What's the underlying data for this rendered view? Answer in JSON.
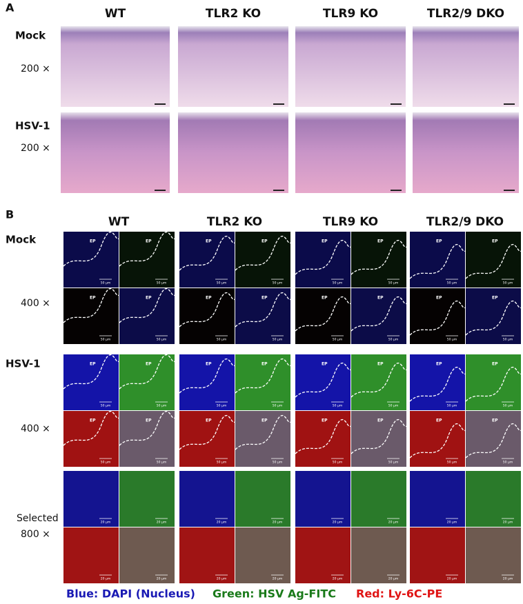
{
  "panel_a": {
    "label": "A",
    "columns": [
      "WT",
      "TLR2  KO",
      "TLR9  KO",
      "TLR2/9 DKO"
    ],
    "rows": [
      {
        "label": "Mock",
        "magnification": "200 ×"
      },
      {
        "label": "HSV-1",
        "magnification": "200 ×"
      }
    ]
  },
  "panel_b": {
    "label": "B",
    "columns": [
      "WT",
      "TLR2  KO",
      "TLR9  KO",
      "TLR2/9 DKO"
    ],
    "rows": [
      {
        "label": "Mock",
        "magnification": "400 ×"
      },
      {
        "label": "HSV-1",
        "magnification": "400 ×"
      },
      {
        "label": "Selected",
        "magnification": "800 ×"
      }
    ],
    "ep_label": "EP",
    "scale_labels": [
      "50 μm",
      "20 μm"
    ]
  },
  "legend": [
    {
      "text": "Blue: DAPI (Nucleus)"
    },
    {
      "text": "Green: HSV Ag-FITC"
    },
    {
      "text": "Red: Ly-6C-PE"
    }
  ]
}
